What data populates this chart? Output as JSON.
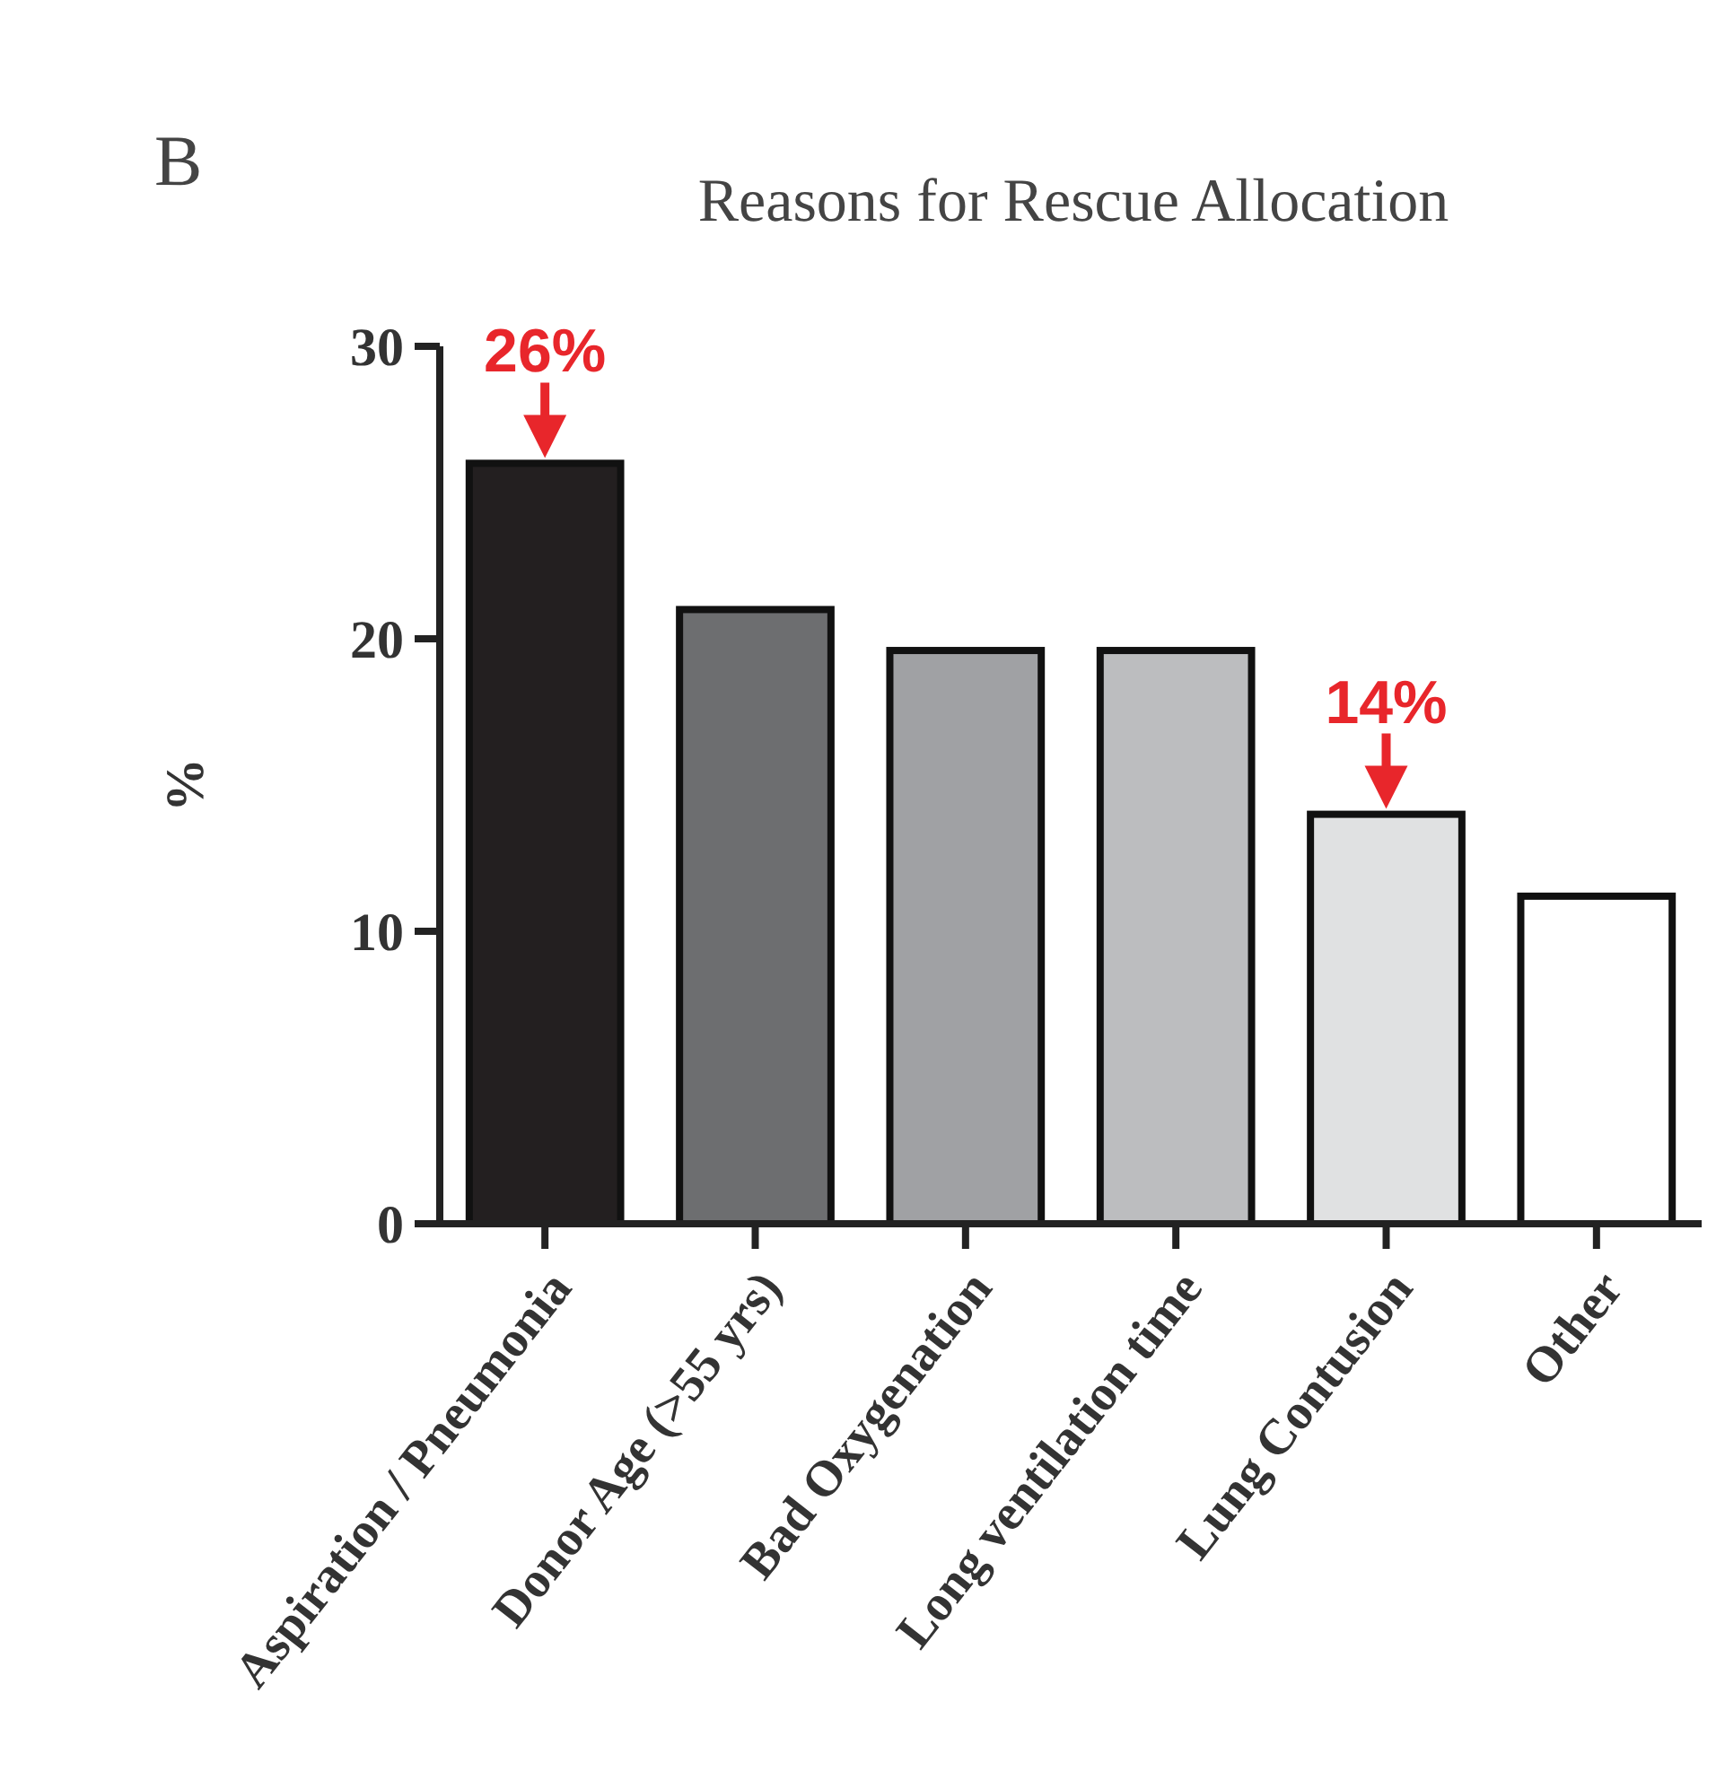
{
  "chart_data": {
    "type": "bar",
    "title": "Reasons for Rescue Allocation",
    "ylabel": "%",
    "categories": [
      "Aspiration / Pneumonia",
      "Donor Age (>55 yrs)",
      "Bad Oxygenation",
      "Long ventilation time",
      "Lung Contusion",
      "Other"
    ],
    "values": [
      26,
      21,
      19.6,
      19.6,
      14,
      11.2
    ],
    "value_labels": [
      "26%",
      null,
      null,
      null,
      "14%",
      null
    ],
    "colors": [
      "#231f20",
      "#6d6e70",
      "#a0a1a4",
      "#bcbdbf",
      "#e0e1e2",
      "#ffffff"
    ],
    "ylim": [
      0,
      30
    ],
    "yticks": [
      0,
      10,
      20,
      30
    ],
    "grid": false,
    "annotations": [
      "B"
    ]
  }
}
